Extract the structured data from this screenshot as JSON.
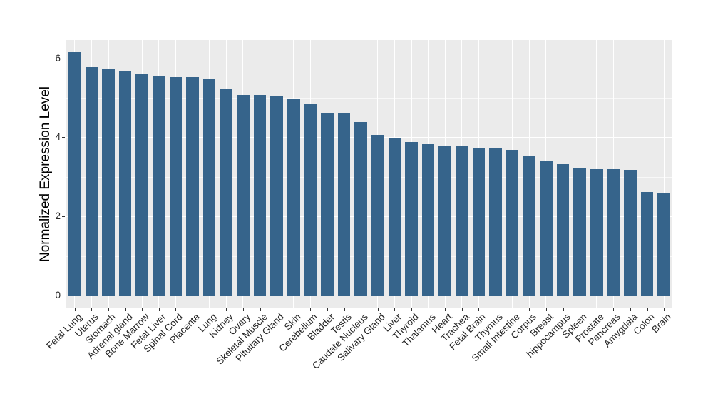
{
  "chart_data": {
    "type": "bar",
    "title": "",
    "xlabel": "",
    "ylabel": "Normalized Expression Level",
    "categories": [
      "Fetal Lung",
      "Uterus",
      "Stomach",
      "Adrenal gland",
      "Bone Marrow",
      "Fetal Liver",
      "Spinal Cord",
      "Placenta",
      "Lung",
      "Kidney",
      "Ovary",
      "Skeletal Muscle",
      "Pituitary Gland",
      "Skin",
      "Cerebellum",
      "Bladder",
      "Testis",
      "Caudate Nucleus",
      "Salivary Gland",
      "Liver",
      "Thyroid",
      "Thalamus",
      "Heart",
      "Trachea",
      "Fetal Brain",
      "Thymus",
      "Small Intestine",
      "Corpus",
      "Breast",
      "hippocampus",
      "Spleen",
      "Prostate",
      "Pancreas",
      "Amygdala",
      "Colon",
      "Brain"
    ],
    "values": [
      6.15,
      5.78,
      5.74,
      5.68,
      5.6,
      5.57,
      5.52,
      5.52,
      5.48,
      5.24,
      5.08,
      5.08,
      5.04,
      4.99,
      4.84,
      4.63,
      4.6,
      4.39,
      4.06,
      3.98,
      3.89,
      3.82,
      3.79,
      3.78,
      3.74,
      3.72,
      3.68,
      3.52,
      3.41,
      3.32,
      3.24,
      3.2,
      3.19,
      3.17,
      2.61,
      2.59
    ],
    "ylim": [
      -0.33,
      6.46
    ],
    "yticks_major": [
      0,
      2,
      4,
      6
    ],
    "yticks_minor": [
      1,
      3,
      5
    ],
    "grid": "on",
    "legend": "none",
    "bar_color": "#36648B",
    "panel_bg": "#EBEBEB",
    "grid_color": "#FFFFFF",
    "tick_label_color": "#262626",
    "axis_title_color": "#000000"
  }
}
